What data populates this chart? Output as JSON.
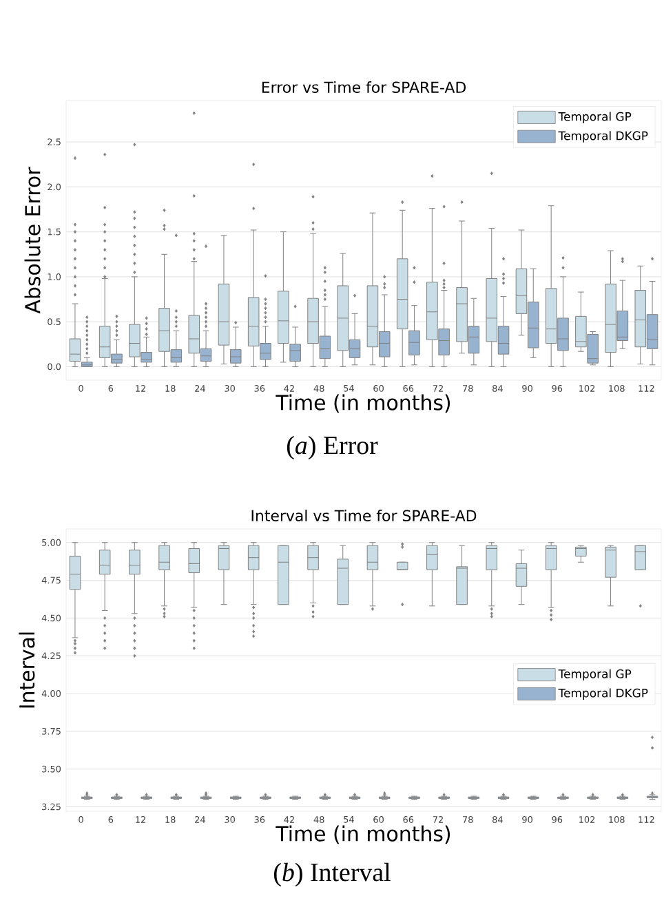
{
  "chart_data": [
    {
      "type": "box",
      "title": "Error vs Time for SPARE-AD",
      "xlabel": "Time (in months)",
      "ylabel": "Absolute Error",
      "annotations": [
        "(*a*) Error"
      ],
      "categories": [
        "0",
        "6",
        "12",
        "18",
        "24",
        "30",
        "36",
        "42",
        "48",
        "54",
        "60",
        "66",
        "72",
        "78",
        "84",
        "90",
        "96",
        "102",
        "108",
        "112"
      ],
      "ylim": [
        -0.15,
        2.96
      ],
      "yticks": [
        {
          "value": 0,
          "label": "0.0"
        },
        0.5,
        {
          "value": 1,
          "label": "1.0"
        },
        1.5,
        {
          "value": 2,
          "label": "2.0"
        },
        2.5
      ],
      "grid": "y",
      "legend": "top right",
      "marker": "diamond",
      "series": [
        {
          "name": "Temporal GP",
          "color": "#c9dde6",
          "boxes": [
            {
              "low": 0,
              "q1": 0.06,
              "median": 0.14,
              "q3": 0.31,
              "high": 0.7,
              "outliers": [
                0.8,
                0.9,
                1.0,
                1.1,
                1.2,
                1.3,
                1.4,
                1.5,
                1.58,
                2.32
              ]
            },
            {
              "low": 0,
              "q1": 0.1,
              "median": 0.22,
              "q3": 0.45,
              "high": 0.98,
              "outliers": [
                1.0,
                1.1,
                1.2,
                1.3,
                1.4,
                1.5,
                1.58,
                1.77,
                2.36
              ]
            },
            {
              "low": 0,
              "q1": 0.11,
              "median": 0.26,
              "q3": 0.47,
              "high": 1.0,
              "outliers": [
                1.05,
                1.15,
                1.25,
                1.35,
                1.45,
                1.55,
                1.65,
                1.72,
                2.47
              ]
            },
            {
              "low": 0,
              "q1": 0.17,
              "median": 0.4,
              "q3": 0.65,
              "high": 1.25,
              "outliers": [
                1.53,
                1.57,
                1.74
              ]
            },
            {
              "low": 0,
              "q1": 0.15,
              "median": 0.31,
              "q3": 0.57,
              "high": 1.17,
              "outliers": [
                1.2,
                1.3,
                1.4,
                1.48,
                1.9,
                2.82
              ]
            },
            {
              "low": 0.03,
              "q1": 0.24,
              "median": 0.5,
              "q3": 0.92,
              "high": 1.46
            },
            {
              "low": 0,
              "q1": 0.23,
              "median": 0.45,
              "q3": 0.77,
              "high": 1.52,
              "outliers": [
                1.76,
                2.25
              ]
            },
            {
              "low": 0.05,
              "q1": 0.26,
              "median": 0.51,
              "q3": 0.84,
              "high": 1.5
            },
            {
              "low": 0,
              "q1": 0.26,
              "median": 0.5,
              "q3": 0.76,
              "high": 1.48,
              "outliers": [
                1.53,
                1.6,
                1.89
              ]
            },
            {
              "low": 0,
              "q1": 0.18,
              "median": 0.54,
              "q3": 0.9,
              "high": 1.26
            },
            {
              "low": 0.02,
              "q1": 0.22,
              "median": 0.45,
              "q3": 0.9,
              "high": 1.71
            },
            {
              "low": 0,
              "q1": 0.42,
              "median": 0.75,
              "q3": 1.2,
              "high": 1.74,
              "outliers": [
                1.83
              ]
            },
            {
              "low": 0,
              "q1": 0.3,
              "median": 0.61,
              "q3": 0.94,
              "high": 1.76,
              "outliers": [
                2.12
              ]
            },
            {
              "low": 0.15,
              "q1": 0.28,
              "median": 0.7,
              "q3": 0.88,
              "high": 1.62,
              "outliers": [
                1.83
              ]
            },
            {
              "low": 0,
              "q1": 0.28,
              "median": 0.54,
              "q3": 0.98,
              "high": 1.54,
              "outliers": [
                2.15
              ]
            },
            {
              "low": 0.35,
              "q1": 0.59,
              "median": 0.79,
              "q3": 1.09,
              "high": 1.52
            },
            {
              "low": 0,
              "q1": 0.26,
              "median": 0.42,
              "q3": 0.87,
              "high": 1.79
            },
            {
              "low": 0.17,
              "q1": 0.22,
              "median": 0.28,
              "q3": 0.56,
              "high": 0.83
            },
            {
              "low": 0,
              "q1": 0.16,
              "median": 0.47,
              "q3": 0.92,
              "high": 1.29
            },
            {
              "low": 0.03,
              "q1": 0.22,
              "median": 0.52,
              "q3": 0.85,
              "high": 1.12
            }
          ]
        },
        {
          "name": "Temporal DKGP",
          "color": "#98b3cf",
          "boxes": [
            {
              "low": 0,
              "q1": 0.0,
              "median": 0.02,
              "q3": 0.05,
              "high": 0.1,
              "outliers": [
                0.15,
                0.2,
                0.25,
                0.3,
                0.35,
                0.4,
                0.45,
                0.5,
                0.55
              ]
            },
            {
              "low": 0,
              "q1": 0.04,
              "median": 0.08,
              "q3": 0.14,
              "high": 0.3,
              "outliers": [
                0.35,
                0.4,
                0.45,
                0.5,
                0.56
              ]
            },
            {
              "low": 0,
              "q1": 0.05,
              "median": 0.08,
              "q3": 0.16,
              "high": 0.33,
              "outliers": [
                0.36,
                0.42,
                0.48,
                0.54
              ]
            },
            {
              "low": 0,
              "q1": 0.05,
              "median": 0.1,
              "q3": 0.19,
              "high": 0.4,
              "outliers": [
                0.45,
                0.5,
                0.55,
                0.62,
                1.46
              ]
            },
            {
              "low": 0,
              "q1": 0.06,
              "median": 0.12,
              "q3": 0.2,
              "high": 0.4,
              "outliers": [
                0.45,
                0.5,
                0.55,
                0.6,
                0.65,
                0.7,
                1.34
              ]
            },
            {
              "low": 0,
              "q1": 0.04,
              "median": 0.11,
              "q3": 0.19,
              "high": 0.44,
              "outliers": [
                0.49
              ]
            },
            {
              "low": 0,
              "q1": 0.08,
              "median": 0.15,
              "q3": 0.26,
              "high": 0.45,
              "outliers": [
                0.5,
                0.55,
                0.6,
                0.65,
                0.7,
                0.75,
                1.01
              ]
            },
            {
              "low": 0,
              "q1": 0.06,
              "median": 0.18,
              "q3": 0.25,
              "high": 0.44,
              "outliers": [
                0.67
              ]
            },
            {
              "low": 0,
              "q1": 0.09,
              "median": 0.2,
              "q3": 0.34,
              "high": 0.67,
              "outliers": [
                0.75,
                0.8,
                0.85,
                0.95,
                1.05,
                1.1
              ]
            },
            {
              "low": 0.02,
              "q1": 0.1,
              "median": 0.2,
              "q3": 0.3,
              "high": 0.59,
              "outliers": [
                0.79
              ]
            },
            {
              "low": 0,
              "q1": 0.11,
              "median": 0.26,
              "q3": 0.39,
              "high": 0.8,
              "outliers": [
                0.88,
                0.92,
                1.0
              ]
            },
            {
              "low": 0.02,
              "q1": 0.13,
              "median": 0.27,
              "q3": 0.4,
              "high": 0.68,
              "outliers": [
                0.94,
                1.1
              ]
            },
            {
              "low": 0,
              "q1": 0.13,
              "median": 0.29,
              "q3": 0.42,
              "high": 0.85,
              "outliers": [
                0.88,
                0.92,
                0.96,
                1.15,
                1.78
              ]
            },
            {
              "low": 0.02,
              "q1": 0.15,
              "median": 0.33,
              "q3": 0.45,
              "high": 0.76
            },
            {
              "low": 0,
              "q1": 0.14,
              "median": 0.26,
              "q3": 0.45,
              "high": 0.78,
              "outliers": [
                0.93,
                0.98,
                1.03,
                1.2
              ]
            },
            {
              "low": 0.1,
              "q1": 0.21,
              "median": 0.43,
              "q3": 0.72,
              "high": 1.09
            },
            {
              "low": 0,
              "q1": 0.18,
              "median": 0.31,
              "q3": 0.54,
              "high": 1.0,
              "outliers": [
                1.1,
                1.21
              ]
            },
            {
              "low": 0.02,
              "q1": 0.04,
              "median": 0.09,
              "q3": 0.36,
              "high": 0.39
            },
            {
              "low": 0.2,
              "q1": 0.29,
              "median": 0.33,
              "q3": 0.62,
              "high": 0.96,
              "outliers": [
                1.17,
                1.2
              ]
            },
            {
              "low": 0.02,
              "q1": 0.2,
              "median": 0.3,
              "q3": 0.58,
              "high": 0.95,
              "outliers": [
                1.2
              ]
            }
          ]
        }
      ]
    },
    {
      "type": "box",
      "title": "Interval vs Time for SPARE-AD",
      "xlabel": "Time (in months)",
      "ylabel": "Interval",
      "annotations": [
        "(*b*) Interval"
      ],
      "categories": [
        "0",
        "6",
        "12",
        "18",
        "24",
        "30",
        "36",
        "42",
        "48",
        "54",
        "60",
        "66",
        "72",
        "78",
        "84",
        "90",
        "96",
        "102",
        "108",
        "112"
      ],
      "ylim": [
        3.22,
        5.09
      ],
      "yticks": [
        3.25,
        {
          "value": 3.5,
          "label": "3.50"
        },
        3.75,
        {
          "value": 4,
          "label": "4.00"
        },
        4.25,
        {
          "value": 4.5,
          "label": "4.50"
        },
        4.75,
        {
          "value": 5,
          "label": "5.00"
        }
      ],
      "grid": "y",
      "legend": "right",
      "marker": "diamond",
      "series": [
        {
          "name": "Temporal GP",
          "color": "#c9dde6",
          "boxes": [
            {
              "low": 4.37,
              "q1": 4.69,
              "median": 4.79,
              "q3": 4.91,
              "high": 5.0,
              "outliers": [
                4.35,
                4.33,
                4.3,
                4.27
              ]
            },
            {
              "low": 4.55,
              "q1": 4.79,
              "median": 4.85,
              "q3": 4.95,
              "high": 5.0,
              "outliers": [
                4.5,
                4.45,
                4.4,
                4.35,
                4.3
              ]
            },
            {
              "low": 4.53,
              "q1": 4.79,
              "median": 4.85,
              "q3": 4.95,
              "high": 5.0,
              "outliers": [
                4.5,
                4.45,
                4.4,
                4.35,
                4.3,
                4.25
              ]
            },
            {
              "low": 4.58,
              "q1": 4.82,
              "median": 4.87,
              "q3": 4.98,
              "high": 5.0,
              "outliers": [
                4.56,
                4.53,
                4.51
              ]
            },
            {
              "low": 4.57,
              "q1": 4.8,
              "median": 4.86,
              "q3": 4.96,
              "high": 5.0,
              "outliers": [
                4.55,
                4.5,
                4.45,
                4.4,
                4.35,
                4.3
              ]
            },
            {
              "low": 4.59,
              "q1": 4.82,
              "median": 4.96,
              "q3": 4.98,
              "high": 5.0
            },
            {
              "low": 4.59,
              "q1": 4.82,
              "median": 4.9,
              "q3": 4.98,
              "high": 5.0,
              "outliers": [
                4.57,
                4.53,
                4.5,
                4.45,
                4.41,
                4.38
              ]
            },
            {
              "low": 4.59,
              "q1": 4.59,
              "median": 4.87,
              "q3": 4.98,
              "high": 4.98
            },
            {
              "low": 4.6,
              "q1": 4.82,
              "median": 4.9,
              "q3": 4.98,
              "high": 5.0,
              "outliers": [
                4.58,
                4.54,
                4.51
              ]
            },
            {
              "low": 4.59,
              "q1": 4.59,
              "median": 4.83,
              "q3": 4.89,
              "high": 4.98
            },
            {
              "low": 4.58,
              "q1": 4.82,
              "median": 4.87,
              "q3": 4.98,
              "high": 5.0,
              "outliers": [
                4.56
              ]
            },
            {
              "low": 4.82,
              "q1": 4.82,
              "median": 4.82,
              "q3": 4.87,
              "high": 4.87,
              "outliers": [
                4.97,
                4.99,
                4.59
              ]
            },
            {
              "low": 4.58,
              "q1": 4.82,
              "median": 4.92,
              "q3": 4.98,
              "high": 5.0
            },
            {
              "low": 4.59,
              "q1": 4.59,
              "median": 4.83,
              "q3": 4.84,
              "high": 4.98
            },
            {
              "low": 4.58,
              "q1": 4.82,
              "median": 4.96,
              "q3": 4.98,
              "high": 5.0,
              "outliers": [
                4.56,
                4.53,
                4.51
              ]
            },
            {
              "low": 4.59,
              "q1": 4.71,
              "median": 4.83,
              "q3": 4.86,
              "high": 4.95
            },
            {
              "low": 4.57,
              "q1": 4.82,
              "median": 4.96,
              "q3": 4.98,
              "high": 5.0,
              "outliers": [
                4.55,
                4.52,
                4.49
              ]
            },
            {
              "low": 4.87,
              "q1": 4.91,
              "median": 4.96,
              "q3": 4.97,
              "high": 4.98
            },
            {
              "low": 4.58,
              "q1": 4.77,
              "median": 4.95,
              "q3": 4.97,
              "high": 4.98
            },
            {
              "low": 4.82,
              "q1": 4.82,
              "median": 4.94,
              "q3": 4.98,
              "high": 4.98,
              "outliers": [
                4.58
              ]
            }
          ]
        },
        {
          "name": "Temporal DKGP",
          "color": "#98b3cf",
          "boxes": [
            {
              "low": 3.3,
              "q1": 3.305,
              "median": 3.31,
              "q3": 3.315,
              "high": 3.32,
              "outliers": [
                3.33,
                3.34
              ]
            },
            {
              "low": 3.3,
              "q1": 3.305,
              "median": 3.31,
              "q3": 3.315,
              "high": 3.32,
              "outliers": [
                3.33
              ]
            },
            {
              "low": 3.3,
              "q1": 3.305,
              "median": 3.31,
              "q3": 3.315,
              "high": 3.32,
              "outliers": [
                3.33
              ]
            },
            {
              "low": 3.3,
              "q1": 3.305,
              "median": 3.31,
              "q3": 3.315,
              "high": 3.32,
              "outliers": [
                3.33
              ]
            },
            {
              "low": 3.3,
              "q1": 3.305,
              "median": 3.31,
              "q3": 3.315,
              "high": 3.32,
              "outliers": [
                3.33,
                3.34
              ]
            },
            {
              "low": 3.3,
              "q1": 3.305,
              "median": 3.31,
              "q3": 3.315,
              "high": 3.32
            },
            {
              "low": 3.3,
              "q1": 3.305,
              "median": 3.31,
              "q3": 3.315,
              "high": 3.32,
              "outliers": [
                3.33
              ]
            },
            {
              "low": 3.3,
              "q1": 3.305,
              "median": 3.31,
              "q3": 3.315,
              "high": 3.32
            },
            {
              "low": 3.3,
              "q1": 3.305,
              "median": 3.31,
              "q3": 3.315,
              "high": 3.32,
              "outliers": [
                3.33
              ]
            },
            {
              "low": 3.3,
              "q1": 3.305,
              "median": 3.31,
              "q3": 3.315,
              "high": 3.32,
              "outliers": [
                3.33
              ]
            },
            {
              "low": 3.3,
              "q1": 3.305,
              "median": 3.31,
              "q3": 3.315,
              "high": 3.32,
              "outliers": [
                3.33,
                3.34
              ]
            },
            {
              "low": 3.3,
              "q1": 3.305,
              "median": 3.31,
              "q3": 3.315,
              "high": 3.32
            },
            {
              "low": 3.3,
              "q1": 3.305,
              "median": 3.31,
              "q3": 3.315,
              "high": 3.32,
              "outliers": [
                3.33
              ]
            },
            {
              "low": 3.3,
              "q1": 3.305,
              "median": 3.31,
              "q3": 3.315,
              "high": 3.32
            },
            {
              "low": 3.3,
              "q1": 3.305,
              "median": 3.31,
              "q3": 3.315,
              "high": 3.32,
              "outliers": [
                3.33
              ]
            },
            {
              "low": 3.3,
              "q1": 3.305,
              "median": 3.31,
              "q3": 3.315,
              "high": 3.32
            },
            {
              "low": 3.3,
              "q1": 3.305,
              "median": 3.31,
              "q3": 3.315,
              "high": 3.32,
              "outliers": [
                3.33
              ]
            },
            {
              "low": 3.3,
              "q1": 3.305,
              "median": 3.31,
              "q3": 3.315,
              "high": 3.32,
              "outliers": [
                3.33
              ]
            },
            {
              "low": 3.3,
              "q1": 3.305,
              "median": 3.31,
              "q3": 3.315,
              "high": 3.32,
              "outliers": [
                3.33
              ]
            },
            {
              "low": 3.3,
              "q1": 3.31,
              "median": 3.315,
              "q3": 3.32,
              "high": 3.33,
              "outliers": [
                3.34,
                3.64,
                3.71
              ]
            }
          ]
        }
      ]
    }
  ]
}
